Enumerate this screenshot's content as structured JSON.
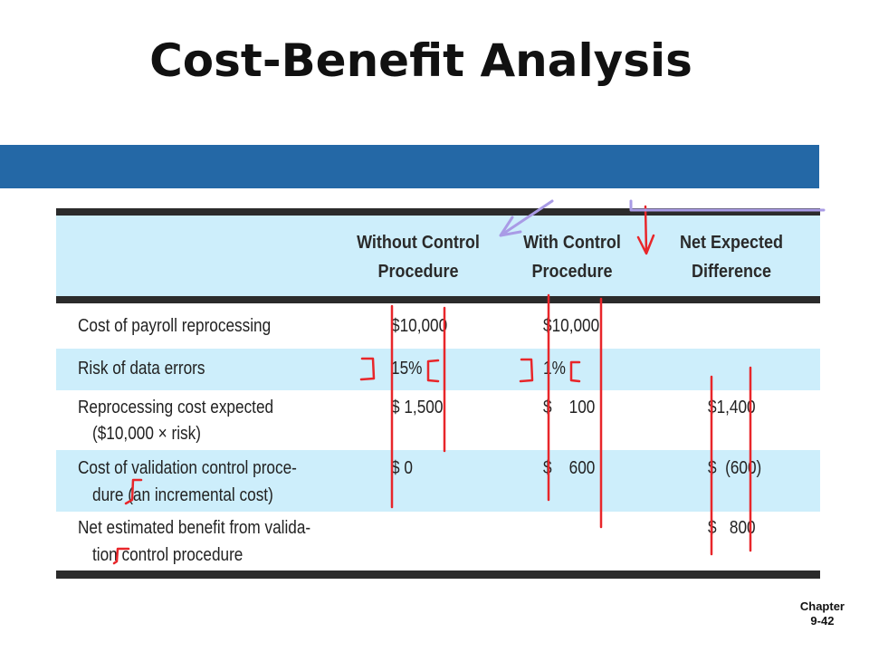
{
  "title": "Cost-Benefit Analysis",
  "footer": {
    "line1": "Chapter",
    "line2": "9-42"
  },
  "table": {
    "headers": {
      "without_1": "Without Control",
      "without_2": "Procedure",
      "with_1": "With Control",
      "with_2": "Procedure",
      "net_1": "Net Expected",
      "net_2": "Difference"
    },
    "rows": [
      {
        "label_1": "Cost of payroll reprocessing",
        "label_2": "",
        "without": "$10,000",
        "with": "$10,000",
        "net": ""
      },
      {
        "label_1": "Risk of data errors",
        "label_2": "",
        "without": "15%",
        "with": "1%",
        "net": ""
      },
      {
        "label_1": "Reprocessing cost expected",
        "label_2": "($10,000 × risk)",
        "without": "$ 1,500",
        "with": "$    100",
        "net": "$1,400"
      },
      {
        "label_1": "Cost of validation control proce-",
        "label_2": "dure (an incremental cost)",
        "without": "$ 0",
        "with": "$    600",
        "net": "$  (600)"
      },
      {
        "label_1": "Net estimated benefit from valida-",
        "label_2": "tion control procedure",
        "without": "",
        "with": "",
        "net": "$   800"
      }
    ]
  },
  "colors": {
    "band": "#2468a6",
    "row_shade": "#cdeefb",
    "annotation_red": "#e8262a",
    "annotation_purple": "#a99be6"
  }
}
